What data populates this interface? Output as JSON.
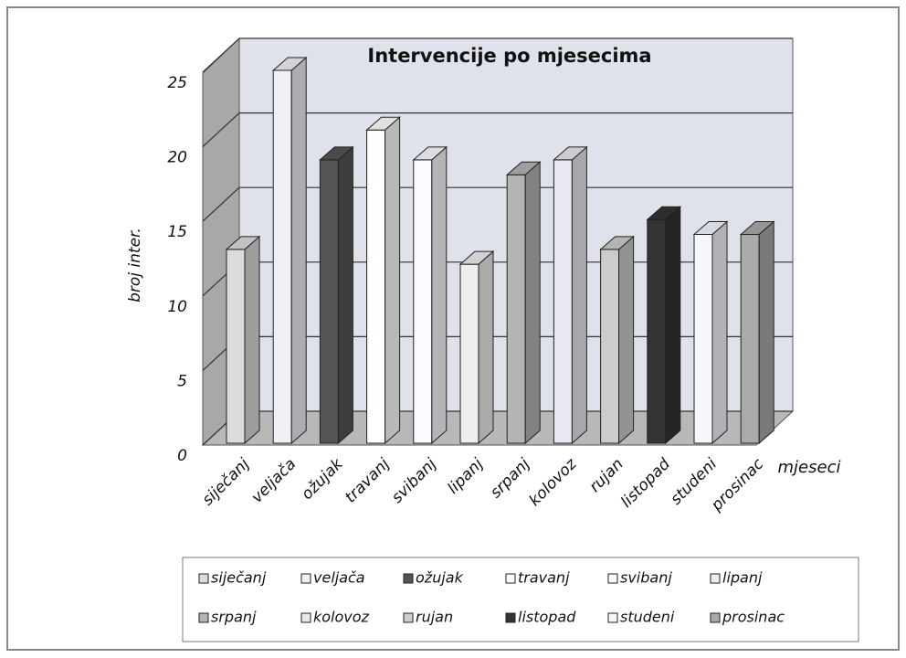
{
  "chart_data": {
    "type": "bar3d",
    "title": "Intervencije po mjesecima",
    "y_label": "broj inter.",
    "x_label": "mjeseci",
    "categories": [
      "siječanj",
      "veljača",
      "ožujak",
      "travanj",
      "svibanj",
      "lipanj",
      "srpanj",
      "kolovoz",
      "rujan",
      "listopad",
      "studeni",
      "prosinac"
    ],
    "values": [
      13,
      25,
      19,
      21,
      19,
      12,
      18,
      19,
      13,
      15,
      14,
      14
    ],
    "colors": [
      "#dcdcdc",
      "#eef0f6",
      "#555555",
      "#ffffff",
      "#fafaff",
      "#eeeeee",
      "#b4b4b4",
      "#e8e8f0",
      "#cccccc",
      "#333333",
      "#f6f6ff",
      "#aaaaaa"
    ],
    "ylim": [
      0,
      25
    ],
    "yticks": [
      0,
      5,
      10,
      15,
      20,
      25
    ],
    "grid": true
  }
}
